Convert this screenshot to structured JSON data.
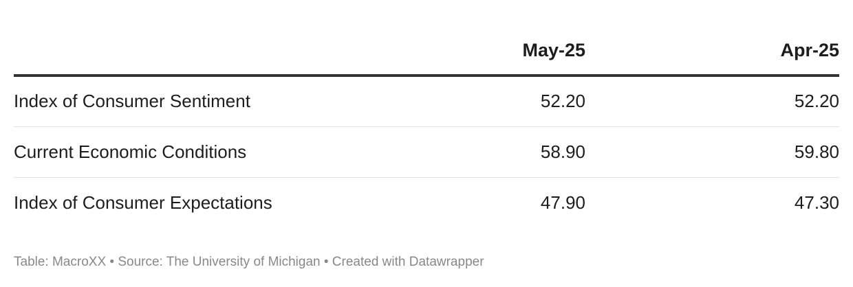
{
  "chart_data": {
    "type": "table",
    "columns": [
      "",
      "May-25",
      "Apr-25"
    ],
    "rows": [
      {
        "label": "Index of Consumer Sentiment",
        "values": [
          "52.20",
          "52.20"
        ]
      },
      {
        "label": "Current Economic Conditions",
        "values": [
          "58.90",
          "59.80"
        ]
      },
      {
        "label": "Index of Consumer Expectations",
        "values": [
          "47.90",
          "47.30"
        ]
      }
    ]
  },
  "footer": {
    "notes": "Table: MacroXX • Source: The University of Michigan • Created with Datawrapper"
  },
  "colors": {
    "text": "#1d1d1d",
    "header_rule": "#333333",
    "row_rule": "#e3e3e3",
    "notes": "#888888"
  }
}
